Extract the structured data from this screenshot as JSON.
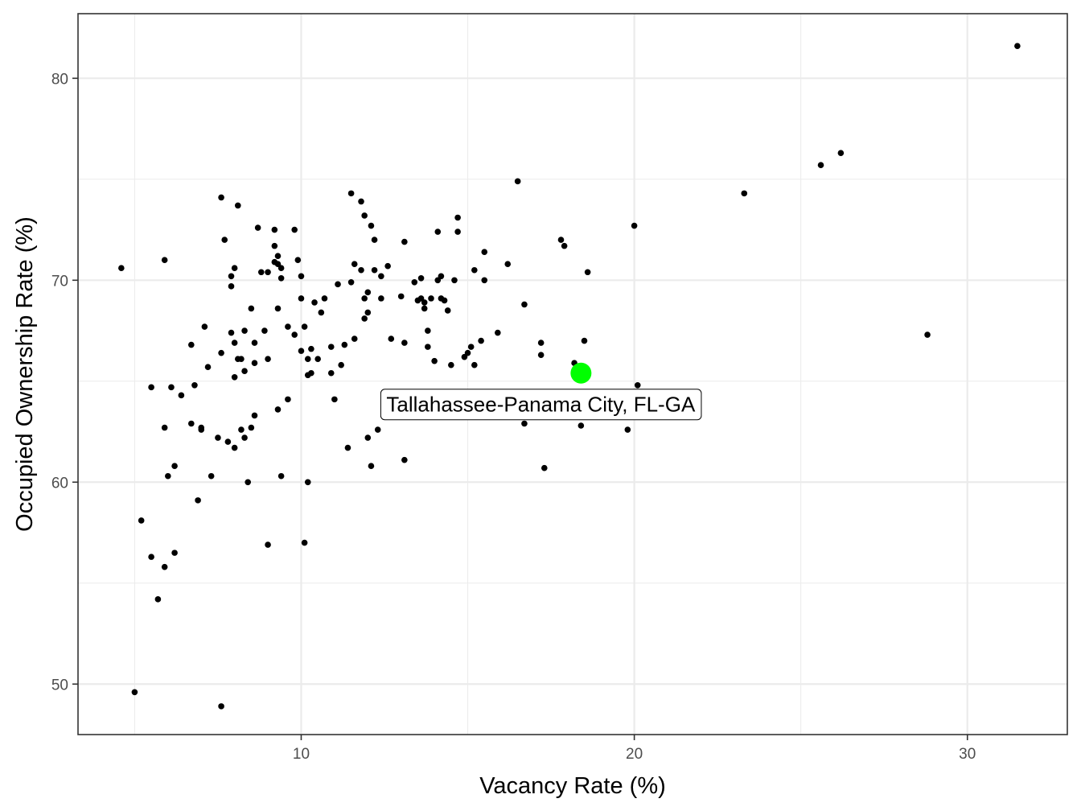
{
  "chart_data": {
    "type": "scatter",
    "title": "",
    "xlabel": "Vacancy Rate (%)",
    "ylabel": "Occupied Ownership Rate (%)",
    "xlim": [
      3.3,
      33.0
    ],
    "ylim": [
      47.5,
      83.2
    ],
    "x_ticks": [
      10,
      20,
      30
    ],
    "y_ticks": [
      50,
      60,
      70,
      80
    ],
    "grid": true,
    "legend": "none",
    "colors": {
      "points": "#000000",
      "highlight": "#00ff00",
      "grid": "#ebebeb",
      "border": "#333333"
    },
    "points": [
      [
        4.6,
        70.6
      ],
      [
        5.0,
        49.6
      ],
      [
        5.2,
        58.1
      ],
      [
        5.5,
        64.7
      ],
      [
        5.5,
        56.3
      ],
      [
        5.7,
        54.2
      ],
      [
        5.9,
        62.7
      ],
      [
        5.9,
        71.0
      ],
      [
        5.9,
        55.8
      ],
      [
        6.0,
        60.3
      ],
      [
        6.1,
        64.7
      ],
      [
        6.2,
        56.5
      ],
      [
        6.2,
        60.8
      ],
      [
        6.4,
        64.3
      ],
      [
        6.7,
        66.8
      ],
      [
        6.7,
        62.9
      ],
      [
        6.8,
        64.8
      ],
      [
        6.9,
        59.1
      ],
      [
        7.0,
        62.6
      ],
      [
        7.0,
        62.7
      ],
      [
        7.1,
        67.7
      ],
      [
        7.2,
        65.7
      ],
      [
        7.3,
        60.3
      ],
      [
        7.5,
        62.2
      ],
      [
        7.6,
        66.4
      ],
      [
        7.6,
        74.1
      ],
      [
        7.6,
        48.9
      ],
      [
        7.7,
        72.0
      ],
      [
        7.8,
        62.0
      ],
      [
        7.9,
        69.7
      ],
      [
        7.9,
        67.4
      ],
      [
        7.9,
        70.2
      ],
      [
        8.0,
        70.6
      ],
      [
        8.0,
        66.9
      ],
      [
        8.0,
        65.2
      ],
      [
        8.0,
        61.7
      ],
      [
        8.1,
        73.7
      ],
      [
        8.1,
        66.1
      ],
      [
        8.2,
        62.6
      ],
      [
        8.2,
        66.1
      ],
      [
        8.3,
        65.5
      ],
      [
        8.3,
        62.2
      ],
      [
        8.3,
        67.5
      ],
      [
        8.4,
        60.0
      ],
      [
        8.5,
        68.6
      ],
      [
        8.5,
        62.7
      ],
      [
        8.6,
        65.9
      ],
      [
        8.6,
        66.9
      ],
      [
        8.6,
        63.3
      ],
      [
        8.7,
        72.6
      ],
      [
        8.8,
        70.4
      ],
      [
        8.9,
        67.5
      ],
      [
        9.0,
        66.1
      ],
      [
        9.0,
        56.9
      ],
      [
        9.0,
        70.4
      ],
      [
        9.2,
        71.7
      ],
      [
        9.2,
        72.5
      ],
      [
        9.2,
        70.9
      ],
      [
        9.3,
        71.2
      ],
      [
        9.3,
        68.6
      ],
      [
        9.3,
        63.6
      ],
      [
        9.3,
        70.8
      ],
      [
        9.4,
        70.1
      ],
      [
        9.4,
        70.6
      ],
      [
        9.4,
        60.3
      ],
      [
        9.6,
        67.7
      ],
      [
        9.6,
        64.1
      ],
      [
        9.8,
        72.5
      ],
      [
        9.8,
        67.3
      ],
      [
        9.9,
        71.0
      ],
      [
        10.0,
        70.2
      ],
      [
        10.0,
        69.1
      ],
      [
        10.0,
        66.5
      ],
      [
        10.1,
        67.7
      ],
      [
        10.1,
        57.0
      ],
      [
        10.2,
        60.0
      ],
      [
        10.2,
        65.3
      ],
      [
        10.2,
        66.1
      ],
      [
        10.3,
        65.4
      ],
      [
        10.3,
        66.6
      ],
      [
        10.4,
        68.9
      ],
      [
        10.5,
        66.1
      ],
      [
        10.6,
        68.4
      ],
      [
        10.7,
        69.1
      ],
      [
        10.9,
        65.4
      ],
      [
        10.9,
        66.7
      ],
      [
        11.0,
        64.1
      ],
      [
        11.1,
        69.8
      ],
      [
        11.2,
        65.8
      ],
      [
        11.3,
        66.8
      ],
      [
        11.4,
        61.7
      ],
      [
        11.5,
        69.9
      ],
      [
        11.5,
        74.3
      ],
      [
        11.6,
        67.1
      ],
      [
        11.6,
        70.8
      ],
      [
        11.8,
        73.9
      ],
      [
        11.8,
        70.5
      ],
      [
        11.9,
        73.2
      ],
      [
        11.9,
        68.1
      ],
      [
        11.9,
        69.1
      ],
      [
        12.0,
        62.2
      ],
      [
        12.0,
        68.4
      ],
      [
        12.0,
        69.4
      ],
      [
        12.1,
        72.7
      ],
      [
        12.1,
        60.8
      ],
      [
        12.2,
        70.5
      ],
      [
        12.2,
        72.0
      ],
      [
        12.3,
        62.6
      ],
      [
        12.4,
        70.2
      ],
      [
        12.4,
        69.1
      ],
      [
        12.6,
        70.7
      ],
      [
        12.7,
        67.1
      ],
      [
        13.0,
        69.2
      ],
      [
        13.1,
        66.9
      ],
      [
        13.1,
        71.9
      ],
      [
        13.1,
        61.1
      ],
      [
        13.4,
        69.9
      ],
      [
        13.5,
        69.0
      ],
      [
        13.6,
        70.1
      ],
      [
        13.6,
        69.1
      ],
      [
        13.7,
        68.6
      ],
      [
        13.7,
        68.9
      ],
      [
        13.8,
        66.7
      ],
      [
        13.8,
        67.5
      ],
      [
        13.9,
        69.1
      ],
      [
        14.0,
        66.0
      ],
      [
        14.1,
        70.0
      ],
      [
        14.1,
        72.4
      ],
      [
        14.2,
        70.2
      ],
      [
        14.2,
        69.1
      ],
      [
        14.3,
        69.0
      ],
      [
        14.4,
        68.5
      ],
      [
        14.5,
        65.8
      ],
      [
        14.6,
        70.0
      ],
      [
        14.7,
        73.1
      ],
      [
        14.7,
        72.4
      ],
      [
        14.9,
        66.2
      ],
      [
        15.0,
        66.4
      ],
      [
        15.1,
        66.7
      ],
      [
        15.2,
        70.5
      ],
      [
        15.2,
        65.8
      ],
      [
        15.4,
        67.0
      ],
      [
        15.5,
        70.0
      ],
      [
        15.5,
        71.4
      ],
      [
        15.9,
        67.4
      ],
      [
        16.2,
        70.8
      ],
      [
        16.5,
        74.9
      ],
      [
        16.7,
        68.8
      ],
      [
        16.7,
        62.9
      ],
      [
        17.2,
        66.9
      ],
      [
        17.2,
        66.3
      ],
      [
        17.3,
        60.7
      ],
      [
        17.8,
        72.0
      ],
      [
        17.9,
        71.7
      ],
      [
        18.2,
        65.9
      ],
      [
        18.4,
        62.8
      ],
      [
        18.5,
        67.0
      ],
      [
        18.6,
        70.4
      ],
      [
        19.8,
        62.6
      ],
      [
        20.0,
        72.7
      ],
      [
        20.1,
        64.8
      ],
      [
        23.3,
        74.3
      ],
      [
        25.6,
        75.7
      ],
      [
        26.2,
        76.3
      ],
      [
        28.8,
        67.3
      ],
      [
        31.5,
        81.6
      ]
    ],
    "highlight": {
      "x": 18.4,
      "y": 65.4,
      "label": "Tallahassee-Panama City, FL-GA"
    }
  }
}
